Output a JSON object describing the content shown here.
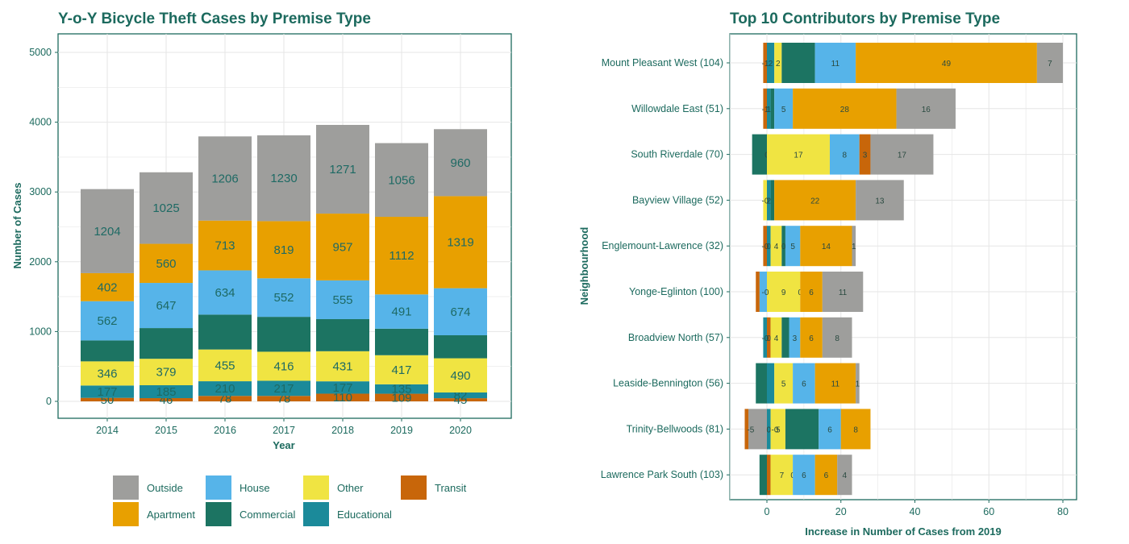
{
  "colors": {
    "Outside": "#9e9e9c",
    "Apartment": "#e8a000",
    "House": "#56b4e9",
    "Commercial": "#1c7462",
    "Other": "#f0e442",
    "Educational": "#1b8a9a",
    "Transit": "#c8660a",
    "text": "#1c6a5e",
    "frame": "#1c6a5e",
    "grid": "#e6e6e6"
  },
  "legend": {
    "items": [
      {
        "key": "Outside",
        "label": "Outside"
      },
      {
        "key": "House",
        "label": "House"
      },
      {
        "key": "Other",
        "label": "Other"
      },
      {
        "key": "Transit",
        "label": "Transit"
      },
      {
        "key": "Apartment",
        "label": "Apartment"
      },
      {
        "key": "Commercial",
        "label": "Commercial"
      },
      {
        "key": "Educational",
        "label": "Educational"
      }
    ]
  },
  "chart_data": [
    {
      "type": "bar",
      "stacked": true,
      "title": "Y-o-Y Bicycle Theft Cases by Premise Type",
      "xlabel": "Year",
      "ylabel": "Number of Cases",
      "categories": [
        "2014",
        "2015",
        "2016",
        "2017",
        "2018",
        "2019",
        "2020"
      ],
      "ylim": [
        0,
        5000
      ],
      "yticks": [
        0,
        1000,
        2000,
        3000,
        4000,
        5000
      ],
      "series": [
        {
          "name": "Transit",
          "values": [
            50,
            46,
            78,
            78,
            110,
            109,
            45
          ]
        },
        {
          "name": "Educational",
          "values": [
            177,
            185,
            210,
            217,
            177,
            135,
            82
          ]
        },
        {
          "name": "Other",
          "values": [
            346,
            379,
            455,
            416,
            431,
            417,
            490
          ]
        },
        {
          "name": "Commercial",
          "values": [
            300,
            440,
            500,
            500,
            460,
            380,
            330
          ]
        },
        {
          "name": "House",
          "values": [
            562,
            647,
            634,
            552,
            555,
            491,
            674
          ]
        },
        {
          "name": "Apartment",
          "values": [
            402,
            560,
            713,
            819,
            957,
            1112,
            1319
          ]
        },
        {
          "name": "Outside",
          "values": [
            1204,
            1025,
            1206,
            1230,
            1271,
            1056,
            960
          ]
        }
      ],
      "labels": {
        "Transit": [
          "50",
          "46",
          "78",
          "78",
          "110",
          "109",
          "45"
        ],
        "Educational": [
          "177",
          "185",
          "210",
          "217",
          "177",
          "135",
          "82"
        ],
        "Other": [
          "346",
          "379",
          "455",
          "416",
          "431",
          "417",
          "490"
        ],
        "Commercial": [
          "",
          "",
          "",
          "",
          "",
          "",
          ""
        ],
        "House": [
          "562",
          "647",
          "634",
          "552",
          "555",
          "491",
          "674"
        ],
        "Apartment": [
          "402",
          "560",
          "713",
          "819",
          "957",
          "1112",
          "1319"
        ],
        "Outside": [
          "1204",
          "1025",
          "1206",
          "1230",
          "1271",
          "1056",
          "960"
        ]
      },
      "grid": true
    },
    {
      "type": "bar",
      "orientation": "horizontal",
      "stacked": true,
      "title": "Top 10 Contributors by Premise Type",
      "xlabel": "Increase in Number of Cases from 2019",
      "ylabel": "Neighbourhood",
      "xlim": [
        -6,
        82
      ],
      "xticks": [
        0,
        20,
        40,
        60,
        80
      ],
      "grid": true,
      "categories": [
        "Mount Pleasant West (104)",
        "Willowdale East (51)",
        "South Riverdale (70)",
        "Bayview Village (52)",
        "Englemount-Lawrence (32)",
        "Yonge-Eglinton (100)",
        "Broadview North (57)",
        "Leaside-Bennington (56)",
        "Trinity-Bellwoods (81)",
        "Lawrence Park South (103)"
      ],
      "rows": [
        {
          "neg": [
            {
              "k": "Transit",
              "v": -1
            }
          ],
          "pos": [
            {
              "k": "Educational",
              "v": 2,
              "label": "2"
            },
            {
              "k": "Other",
              "v": 2,
              "label": "2"
            },
            {
              "k": "Commercial",
              "v": 9,
              "label": ""
            },
            {
              "k": "House",
              "v": 11,
              "label": "11"
            },
            {
              "k": "Apartment",
              "v": 49,
              "label": "49"
            },
            {
              "k": "Outside",
              "v": 7,
              "label": "7"
            }
          ]
        },
        {
          "neg": [
            {
              "k": "Transit",
              "v": -1
            }
          ],
          "pos": [
            {
              "k": "Educational",
              "v": 1,
              "label": "1"
            },
            {
              "k": "Commercial",
              "v": 1,
              "label": ""
            },
            {
              "k": "House",
              "v": 5,
              "label": "5"
            },
            {
              "k": "Apartment",
              "v": 28,
              "label": "28"
            },
            {
              "k": "Outside",
              "v": 16,
              "label": "16"
            }
          ]
        },
        {
          "neg": [
            {
              "k": "Commercial",
              "v": -4
            }
          ],
          "pos": [
            {
              "k": "Educational",
              "v": 0,
              "label": "0"
            },
            {
              "k": "Other",
              "v": 17,
              "label": "17"
            },
            {
              "k": "House",
              "v": 8,
              "label": "8"
            },
            {
              "k": "Transit",
              "v": 3,
              "label": "3"
            },
            {
              "k": "Outside",
              "v": 17,
              "label": "17"
            }
          ]
        },
        {
          "neg": [
            {
              "k": "Other",
              "v": -1
            }
          ],
          "pos": [
            {
              "k": "Educational",
              "v": 1,
              "label": "2"
            },
            {
              "k": "Commercial",
              "v": 1,
              "label": ""
            },
            {
              "k": "Apartment",
              "v": 22,
              "label": "22"
            },
            {
              "k": "Outside",
              "v": 13,
              "label": "13"
            }
          ]
        },
        {
          "neg": [
            {
              "k": "Transit",
              "v": -1
            }
          ],
          "pos": [
            {
              "k": "Educational",
              "v": 1,
              "label": "0"
            },
            {
              "k": "Other",
              "v": 3,
              "label": "4"
            },
            {
              "k": "Commercial",
              "v": 1,
              "label": "0"
            },
            {
              "k": "House",
              "v": 4,
              "label": "5"
            },
            {
              "k": "Apartment",
              "v": 14,
              "label": "14"
            },
            {
              "k": "Outside",
              "v": 1,
              "label": "1"
            }
          ]
        },
        {
          "neg": [
            {
              "k": "House",
              "v": -2
            },
            {
              "k": "Transit",
              "v": -1
            }
          ],
          "pos": [
            {
              "k": "Other",
              "v": 9,
              "label": "9"
            },
            {
              "k": "Educational",
              "v": 0,
              "label": "0"
            },
            {
              "k": "Apartment",
              "v": 6,
              "label": "6"
            },
            {
              "k": "Outside",
              "v": 11,
              "label": "11"
            }
          ]
        },
        {
          "neg": [
            {
              "k": "Educational",
              "v": -1
            }
          ],
          "pos": [
            {
              "k": "Transit",
              "v": 1,
              "label": "0"
            },
            {
              "k": "Other",
              "v": 3,
              "label": "4"
            },
            {
              "k": "Commercial",
              "v": 2,
              "label": ""
            },
            {
              "k": "House",
              "v": 3,
              "label": "3"
            },
            {
              "k": "Apartment",
              "v": 6,
              "label": "6"
            },
            {
              "k": "Outside",
              "v": 8,
              "label": "8"
            }
          ]
        },
        {
          "neg": [
            {
              "k": "Commercial",
              "v": -3
            }
          ],
          "pos": [
            {
              "k": "Educational",
              "v": 2,
              "label": ""
            },
            {
              "k": "Other",
              "v": 5,
              "label": "5"
            },
            {
              "k": "House",
              "v": 6,
              "label": "6"
            },
            {
              "k": "Apartment",
              "v": 11,
              "label": "11"
            },
            {
              "k": "Outside",
              "v": 1,
              "label": "1"
            }
          ]
        },
        {
          "neg": [
            {
              "k": "Outside",
              "v": -5
            },
            {
              "k": "Transit",
              "v": -1
            }
          ],
          "pos": [
            {
              "k": "Educational",
              "v": 1,
              "label": "0"
            },
            {
              "k": "Other",
              "v": 4,
              "label": "5"
            },
            {
              "k": "Commercial",
              "v": 9,
              "label": ""
            },
            {
              "k": "House",
              "v": 6,
              "label": "6"
            },
            {
              "k": "Apartment",
              "v": 8,
              "label": "8"
            }
          ]
        },
        {
          "neg": [
            {
              "k": "Commercial",
              "v": -2
            }
          ],
          "pos": [
            {
              "k": "Transit",
              "v": 1,
              "label": ""
            },
            {
              "k": "Other",
              "v": 6,
              "label": "7"
            },
            {
              "k": "Educational",
              "v": 0,
              "label": "0"
            },
            {
              "k": "House",
              "v": 6,
              "label": "6"
            },
            {
              "k": "Apartment",
              "v": 6,
              "label": "6"
            },
            {
              "k": "Outside",
              "v": 4,
              "label": "4"
            }
          ]
        }
      ],
      "left_labels": [
        {
          "row": 0,
          "text": "-1"
        },
        {
          "row": 1,
          "text": "-1"
        },
        {
          "row": 3,
          "text": "-0"
        },
        {
          "row": 4,
          "text": "-0"
        },
        {
          "row": 5,
          "text": "-0"
        },
        {
          "row": 6,
          "text": "-0"
        },
        {
          "row": 8,
          "text": "-5"
        },
        {
          "row": 8,
          "text": "-0"
        }
      ]
    }
  ]
}
